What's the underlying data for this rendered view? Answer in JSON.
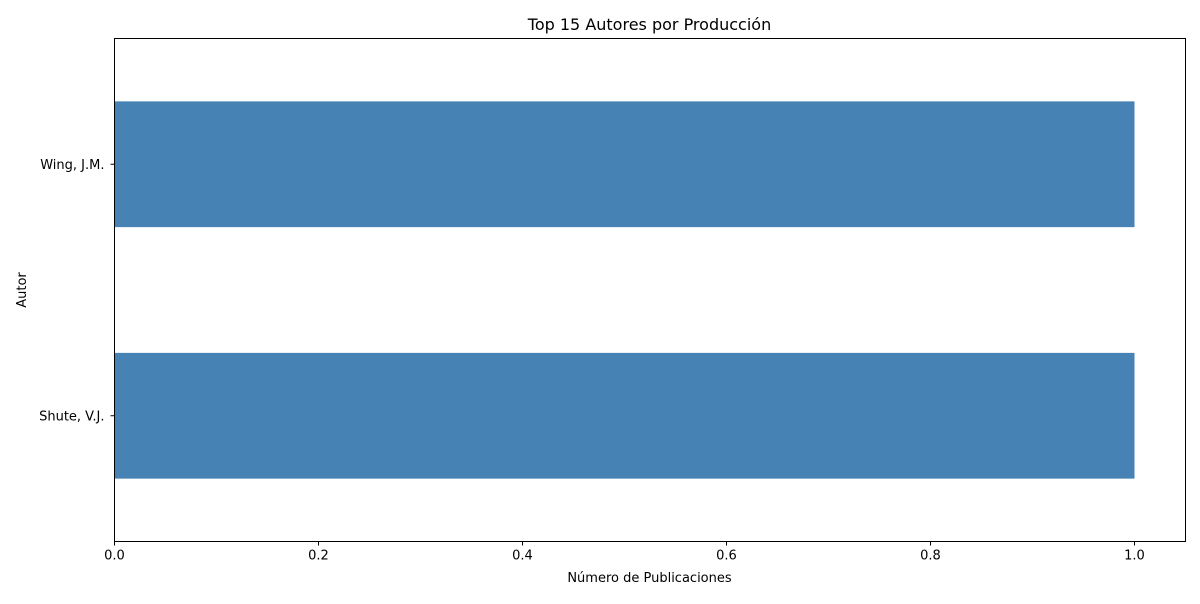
{
  "chart_data": {
    "type": "bar",
    "orientation": "horizontal",
    "title": "Top 15 Autores por Producción",
    "xlabel": "Número de Publicaciones",
    "ylabel": "Autor",
    "categories": [
      "Shute, V.J.",
      "Wing, J.M."
    ],
    "values": [
      1,
      1
    ],
    "xlim": [
      0,
      1.05
    ],
    "xticks": [
      0.0,
      0.2,
      0.4,
      0.6,
      0.8,
      1.0
    ],
    "xtick_labels": [
      "0.0",
      "0.2",
      "0.4",
      "0.6",
      "0.8",
      "1.0"
    ],
    "bar_color": "#4682B4",
    "grid": false,
    "legend": false
  }
}
